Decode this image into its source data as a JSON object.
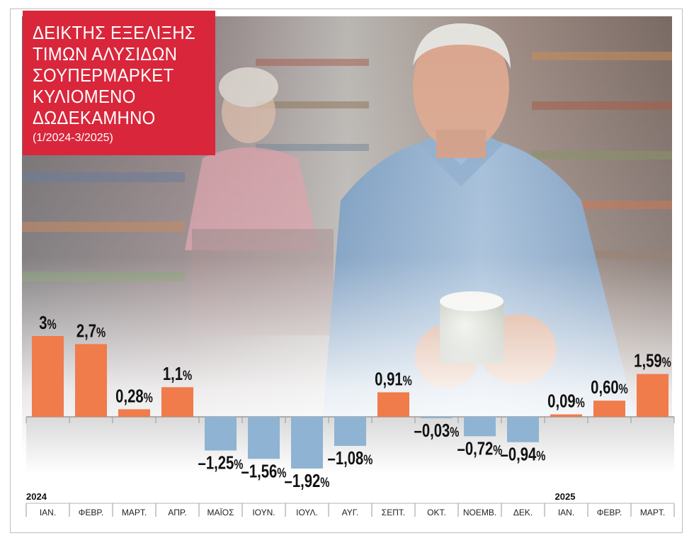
{
  "title": {
    "lines": [
      "ΔΕΙΚΤΗΣ ΕΞΕΛΙΞΗΣ",
      "ΤΙΜΩΝ ΑΛΥΣΙΔΩΝ",
      "ΣΟΥΠΕΡΜΑΡΚΕΤ",
      "ΚΥΛΙΟΜΕΝΟ",
      "ΔΩΔΕΚΑΜΗΝΟ"
    ],
    "subtitle": "(1/2024-3/2025)"
  },
  "colors": {
    "positive": "#f07b4b",
    "negative": "#8fb3d2",
    "title_bg": "#d9263b"
  },
  "chart_data": {
    "type": "bar",
    "title": "ΔΕΙΚΤΗΣ ΕΞΕΛΙΞΗΣ ΤΙΜΩΝ ΑΛΥΣΙΔΩΝ ΣΟΥΠΕΡΜΑΡΚΕΤ ΚΥΛΙΟΜΕΝΟ ΔΩΔΕΚΑΜΗΝΟ",
    "subtitle": "(1/2024-3/2025)",
    "categories": [
      "ΙΑΝ.",
      "ΦΕΒΡ.",
      "ΜΑΡΤ.",
      "ΑΠΡ.",
      "ΜΑΪΟΣ",
      "ΙΟΥΝ.",
      "ΙΟΥΛ.",
      "ΑΥΓ.",
      "ΣΕΠΤ.",
      "ΟΚΤ.",
      "ΝΟΕΜΒ.",
      "ΔΕΚ.",
      "ΙΑΝ.",
      "ΦΕΒΡ.",
      "ΜΑΡΤ."
    ],
    "values": [
      3,
      2.7,
      0.28,
      1.1,
      -1.25,
      -1.56,
      -1.92,
      -1.08,
      0.91,
      -0.03,
      -0.72,
      -0.94,
      0.09,
      0.6,
      1.59
    ],
    "labels": [
      "3",
      "2,7",
      "0,28",
      "1,1",
      "–1,25",
      "–1,56",
      "–1,92",
      "–1,08",
      "0,91",
      "–0,03",
      "–0,72",
      "–0,94",
      "0,09",
      "0,60",
      "1,59"
    ],
    "unit": "%",
    "year_labels": [
      {
        "text": "2024",
        "index": 0
      },
      {
        "text": "2025",
        "index": 12
      }
    ],
    "xlabel": "",
    "ylabel": ""
  }
}
